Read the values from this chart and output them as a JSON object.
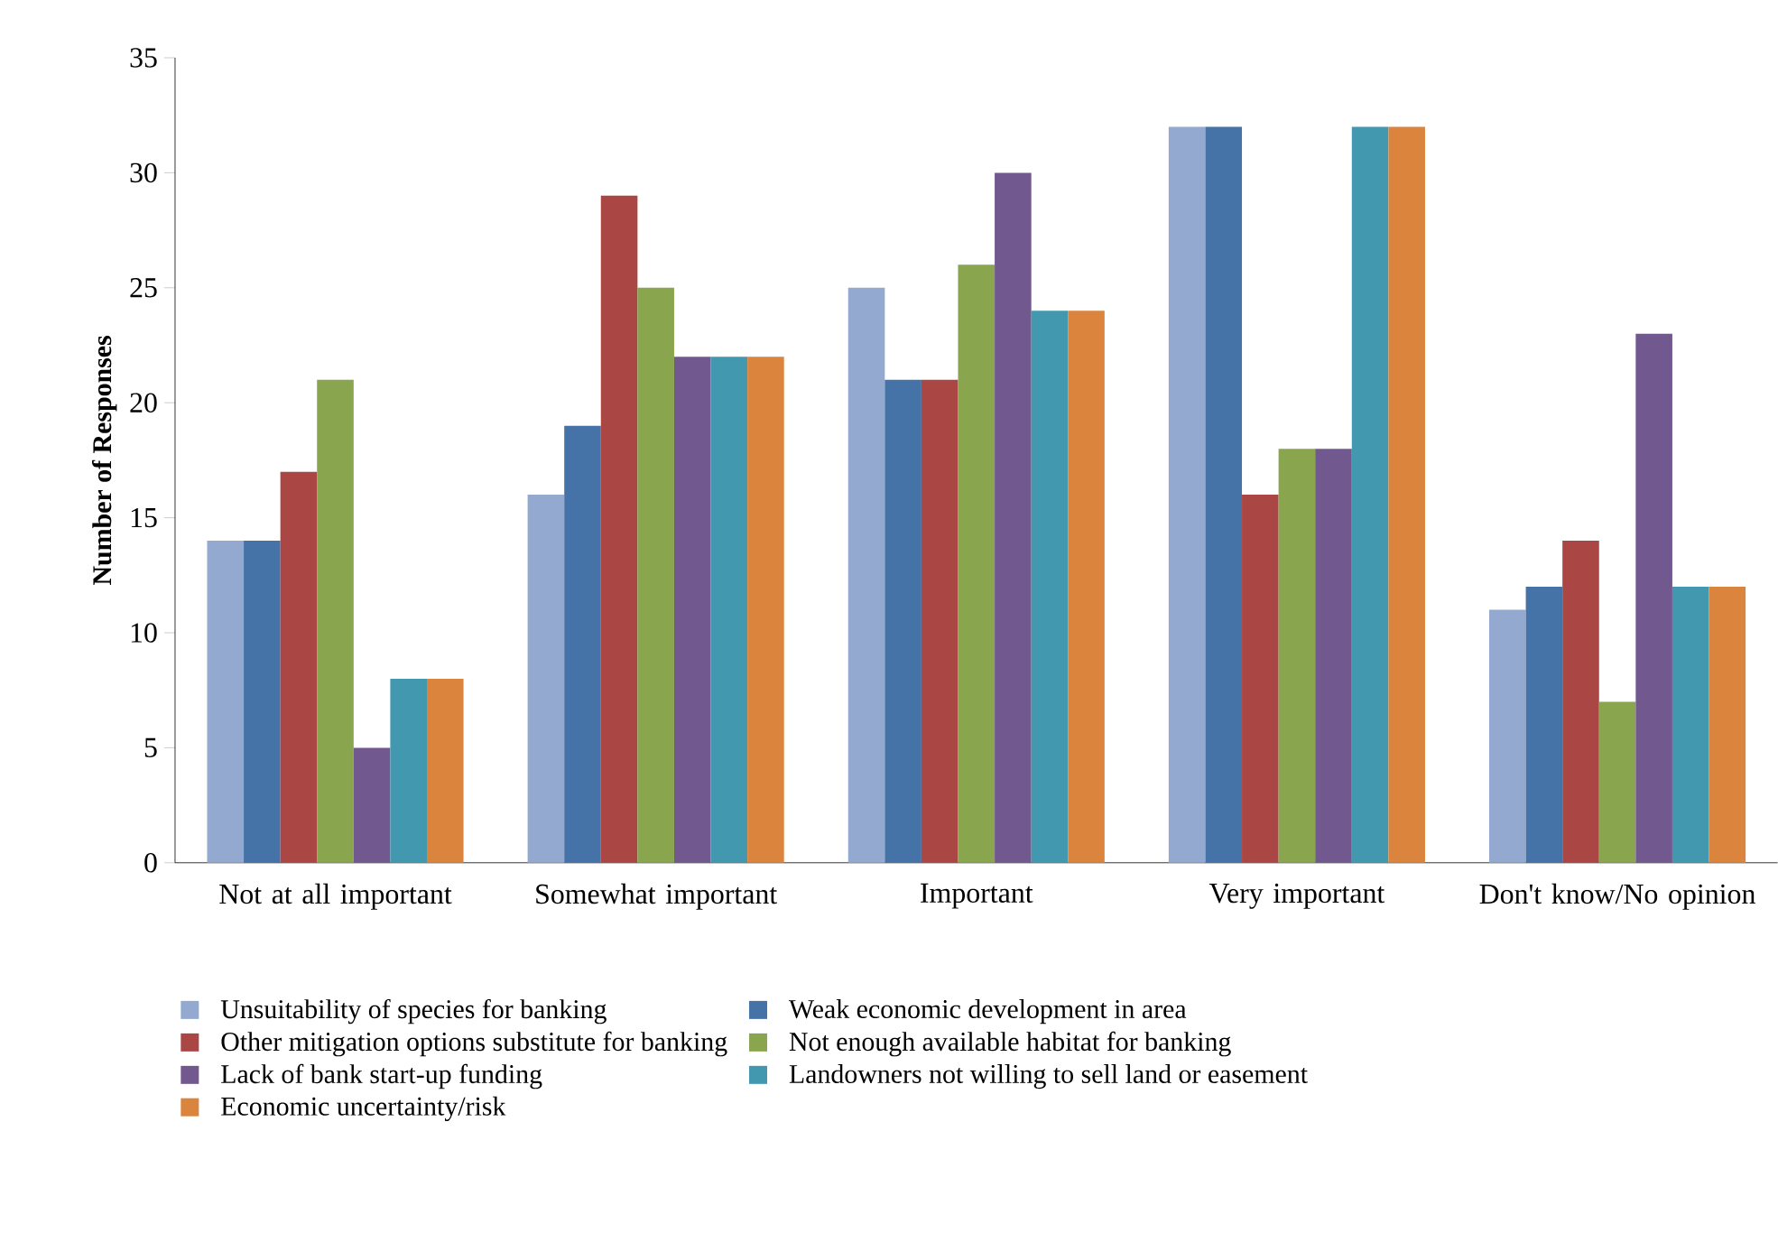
{
  "chart_data": {
    "type": "bar",
    "ylabel": "Number of Responses",
    "categories": [
      "Not at all important",
      "Somewhat important",
      "Important",
      "Very important",
      "Don't know/No opinion"
    ],
    "series": [
      {
        "name": "Unsuitability of species for banking",
        "color": "#93a9d0",
        "values": [
          14,
          16,
          25,
          32,
          11
        ]
      },
      {
        "name": "Weak economic development in area",
        "color": "#4572a7",
        "values": [
          14,
          19,
          21,
          32,
          12
        ]
      },
      {
        "name": "Other mitigation options substitute for banking",
        "color": "#aa4643",
        "values": [
          17,
          29,
          21,
          16,
          14
        ]
      },
      {
        "name": "Not enough available habitat for banking",
        "color": "#89a54e",
        "values": [
          21,
          25,
          26,
          18,
          7
        ]
      },
      {
        "name": "Lack of bank start-up funding",
        "color": "#71588f",
        "values": [
          5,
          22,
          30,
          18,
          23
        ]
      },
      {
        "name": "Landowners not willing to sell land or easement",
        "color": "#4198af",
        "values": [
          8,
          22,
          24,
          32,
          12
        ]
      },
      {
        "name": "Economic uncertainty/risk",
        "color": "#db843d",
        "values": [
          8,
          22,
          24,
          32,
          12
        ]
      }
    ],
    "ylim": [
      0,
      35
    ],
    "yticks": [
      0,
      5,
      10,
      15,
      20,
      25,
      30,
      35
    ],
    "grid": false,
    "legend": "bottom"
  }
}
